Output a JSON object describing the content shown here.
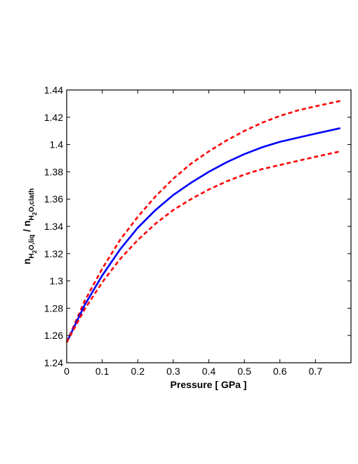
{
  "chart_data": {
    "type": "line",
    "title": "",
    "xlabel": "Pressure [ GPa ]",
    "ylabel": {
      "parts": [
        "n",
        "H",
        "2",
        "O,liq",
        " / n",
        "H",
        "2",
        "O,clath"
      ]
    },
    "xlim": [
      0,
      0.8
    ],
    "ylim": [
      1.24,
      1.44
    ],
    "xticks": [
      0,
      0.1,
      0.2,
      0.3,
      0.4,
      0.5,
      0.6,
      0.7
    ],
    "xtick_labels": [
      "0",
      "0.1",
      "0.2",
      "0.3",
      "0.4",
      "0.5",
      "0.6",
      "0.7"
    ],
    "yticks": [
      1.24,
      1.26,
      1.28,
      1.3,
      1.32,
      1.34,
      1.36,
      1.38,
      1.4,
      1.42,
      1.44
    ],
    "ytick_labels": [
      "1.24",
      "1.26",
      "1.28",
      "1.3",
      "1.32",
      "1.34",
      "1.36",
      "1.38",
      "1.4",
      "1.42",
      "1.44"
    ],
    "grid": false,
    "x": [
      0,
      0.05,
      0.1,
      0.15,
      0.2,
      0.25,
      0.3,
      0.35,
      0.4,
      0.45,
      0.5,
      0.55,
      0.6,
      0.65,
      0.7,
      0.77
    ],
    "series": [
      {
        "color": "#ff0000",
        "style": "dashed",
        "values": [
          1.255,
          1.285,
          1.309,
          1.33,
          1.347,
          1.362,
          1.375,
          1.386,
          1.395,
          1.403,
          1.41,
          1.416,
          1.421,
          1.425,
          1.428,
          1.432
        ]
      },
      {
        "color": "#0000ff",
        "style": "solid",
        "values": [
          1.255,
          1.282,
          1.304,
          1.323,
          1.339,
          1.352,
          1.363,
          1.372,
          1.38,
          1.387,
          1.393,
          1.398,
          1.402,
          1.405,
          1.408,
          1.412
        ]
      },
      {
        "color": "#ff0000",
        "style": "dashed",
        "values": [
          1.255,
          1.279,
          1.299,
          1.316,
          1.33,
          1.342,
          1.352,
          1.36,
          1.367,
          1.373,
          1.378,
          1.382,
          1.385,
          1.388,
          1.391,
          1.395
        ]
      }
    ]
  }
}
